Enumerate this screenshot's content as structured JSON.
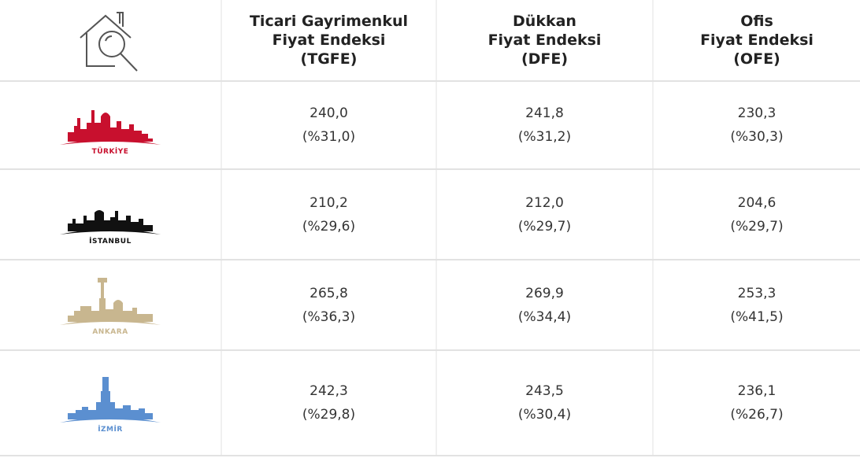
{
  "header": {
    "columns": [
      [
        "Ticari Gayrimenkul",
        "Fiyat Endeksi",
        "(TGFE)"
      ],
      [
        "Dükkan",
        "Fiyat Endeksi",
        "(DFE)"
      ],
      [
        "Ofis",
        "Fiyat Endeksi",
        "(OFE)"
      ]
    ]
  },
  "table": {
    "rows": [
      {
        "label": "TÜRKİYE",
        "cells": [
          [
            "240,0",
            "(%31,0)"
          ],
          [
            "241,8",
            "(%31,2)"
          ],
          [
            "230,3",
            "(%30,3)"
          ]
        ]
      },
      {
        "label": "İSTANBUL",
        "cells": [
          [
            "210,2",
            "(%29,6)"
          ],
          [
            "212,0",
            "(%29,7)"
          ],
          [
            "204,6",
            "(%29,7)"
          ]
        ]
      },
      {
        "label": "ANKARA",
        "cells": [
          [
            "265,8",
            "(%36,3)"
          ],
          [
            "269,9",
            "(%34,4)"
          ],
          [
            "253,3",
            "(%41,5)"
          ]
        ]
      },
      {
        "label": "İZMİR",
        "cells": [
          [
            "242,3",
            "(%29,8)"
          ],
          [
            "243,5",
            "(%30,4)"
          ],
          [
            "236,1",
            "(%26,7)"
          ]
        ]
      }
    ]
  }
}
